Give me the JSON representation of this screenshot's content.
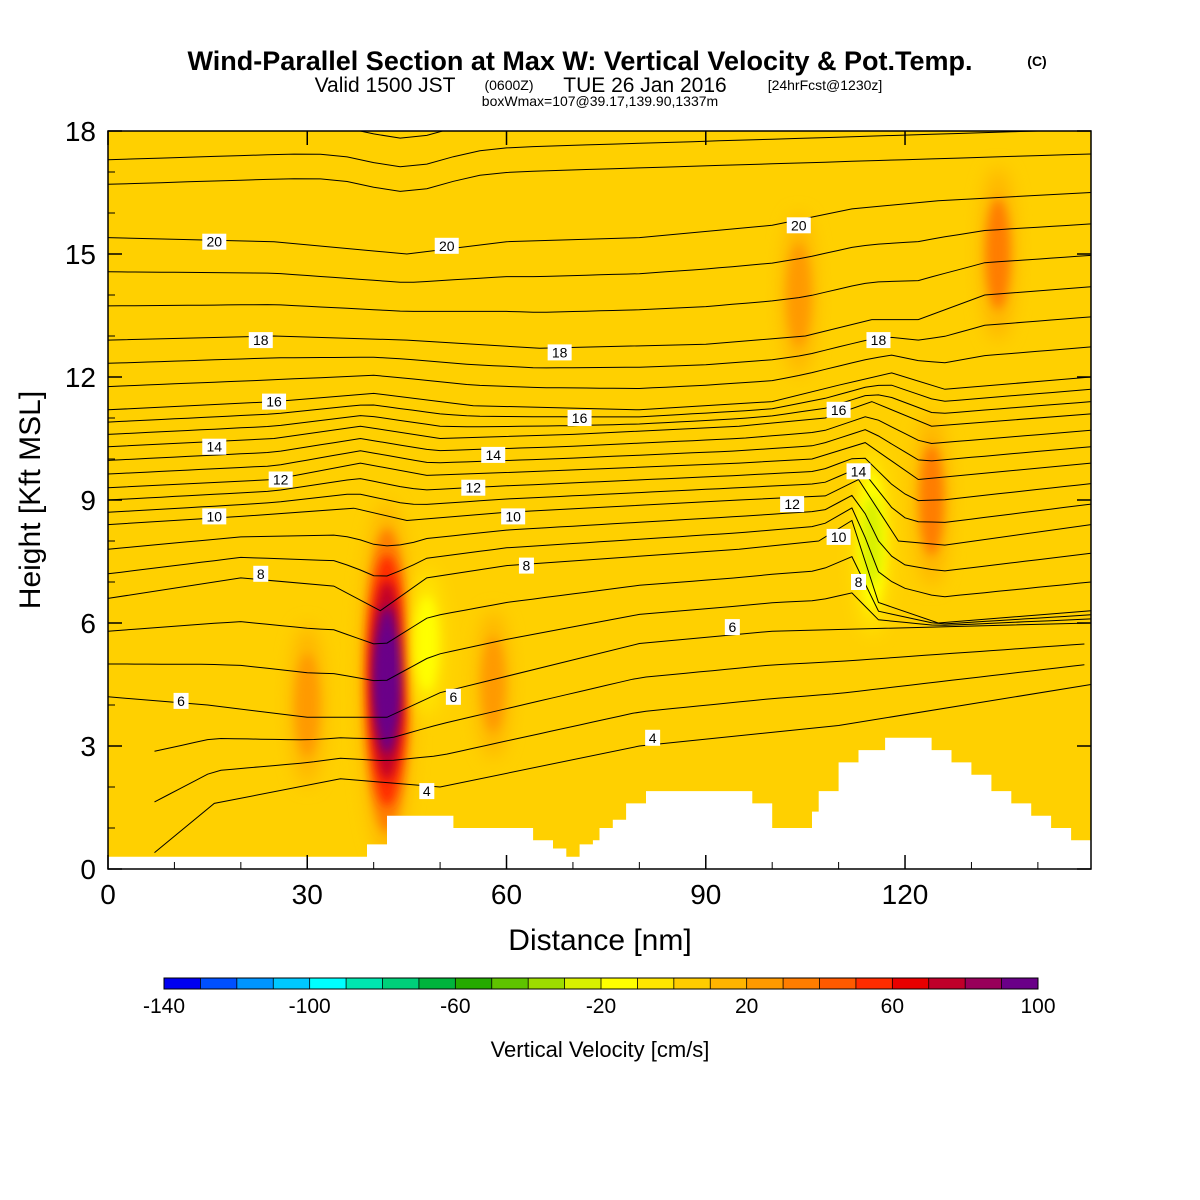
{
  "title": "Wind-Parallel Section at Max W: Vertical Velocity & Pot.Temp.",
  "copyright_mark": "(C)",
  "subtitle_main": "Valid 1500 JST",
  "subtitle_utc": "(0600Z)",
  "subtitle_date": "TUE 26 Jan 2016",
  "subtitle_fcst": "[24hrFcst@1230z]",
  "subtitle_box": "boxWmax=107@39.17,139.90,1337m",
  "chart_data": {
    "type": "heatmap",
    "xlabel": "Distance [nm]",
    "ylabel": "Height [Kft MSL]",
    "xlim": [
      0,
      148
    ],
    "ylim": [
      0,
      18
    ],
    "x_ticks": [
      0,
      30,
      60,
      90,
      120
    ],
    "y_ticks": [
      0,
      3,
      6,
      9,
      12,
      15,
      18
    ],
    "colorbar": {
      "label": "Vertical Velocity [cm/s]",
      "min": -140,
      "max": 100,
      "step": 10,
      "tick_values": [
        -140,
        -100,
        -60,
        -20,
        20,
        60,
        100
      ],
      "tick_labels": [
        "-140",
        "-100",
        "-60",
        "-20",
        "20",
        "60",
        "100"
      ],
      "colors": [
        "#0000f0",
        "#0050ff",
        "#0095ff",
        "#00c8ff",
        "#00ffff",
        "#00e6b0",
        "#00d07a",
        "#00b43c",
        "#25aa00",
        "#5fc400",
        "#9ddc00",
        "#d8f000",
        "#ffff00",
        "#ffe600",
        "#ffcc00",
        "#ffb400",
        "#ff9a00",
        "#ff7d00",
        "#ff5a00",
        "#ff2c00",
        "#e80000",
        "#c0002a",
        "#98005a",
        "#6a0088"
      ]
    },
    "vertical_velocity_features": [
      {
        "x": 42,
        "y": 4.6,
        "w_cms": 100,
        "note": "updraft core"
      },
      {
        "x": 115,
        "y": 8.0,
        "w_cms": -35,
        "note": "downdraft"
      },
      {
        "x": 48,
        "y": 5.5,
        "w_cms": -20
      },
      {
        "x": 124,
        "y": 9.0,
        "w_cms": 30
      },
      {
        "x": 134,
        "y": 15.0,
        "w_cms": 30
      },
      {
        "x": 104,
        "y": 14.0,
        "w_cms": 25
      },
      {
        "x": 30,
        "y": 4.0,
        "w_cms": 25
      },
      {
        "x": 58,
        "y": 4.5,
        "w_cms": 20
      }
    ],
    "theta_contours": {
      "units": "C",
      "levels": [
        {
          "value": 4,
          "points": [
            [
              7,
              0.4
            ],
            [
              16,
              1.6
            ],
            [
              35,
              2.2
            ],
            [
              50,
              2.0
            ],
            [
              80,
              3.0
            ],
            [
              110,
              3.5
            ],
            [
              148,
              4.5
            ]
          ]
        },
        {
          "value": 6,
          "points": [
            [
              0,
              4.2
            ],
            [
              15,
              4.0
            ],
            [
              30,
              3.7
            ],
            [
              42,
              3.7
            ],
            [
              50,
              4.3
            ],
            [
              80,
              5.5
            ],
            [
              100,
              5.8
            ],
            [
              148,
              6.0
            ]
          ]
        },
        {
          "value": 8,
          "points": [
            [
              0,
              6.6
            ],
            [
              20,
              7.1
            ],
            [
              34,
              6.9
            ],
            [
              41,
              6.3
            ],
            [
              48,
              7.1
            ],
            [
              60,
              7.4
            ],
            [
              95,
              7.8
            ],
            [
              107,
              8.0
            ],
            [
              112,
              8.5
            ],
            [
              116,
              6.5
            ],
            [
              125,
              6.0
            ],
            [
              148,
              6.3
            ]
          ]
        },
        {
          "value": 10,
          "points": [
            [
              0,
              8.4
            ],
            [
              20,
              8.6
            ],
            [
              37,
              8.8
            ],
            [
              45,
              8.5
            ],
            [
              60,
              8.7
            ],
            [
              95,
              9.0
            ],
            [
              108,
              9.1
            ],
            [
              113,
              9.5
            ],
            [
              119,
              8.0
            ],
            [
              126,
              7.9
            ],
            [
              148,
              8.4
            ]
          ]
        },
        {
          "value": 12,
          "points": [
            [
              0,
              9.3
            ],
            [
              25,
              9.5
            ],
            [
              38,
              9.9
            ],
            [
              48,
              9.6
            ],
            [
              65,
              9.7
            ],
            [
              95,
              9.9
            ],
            [
              106,
              10.0
            ],
            [
              114,
              10.4
            ],
            [
              122,
              9.5
            ],
            [
              148,
              9.9
            ]
          ]
        },
        {
          "value": 14,
          "points": [
            [
              0,
              10.3
            ],
            [
              25,
              10.5
            ],
            [
              38,
              10.8
            ],
            [
              50,
              10.5
            ],
            [
              70,
              10.6
            ],
            [
              95,
              10.8
            ],
            [
              108,
              11.0
            ],
            [
              115,
              11.4
            ],
            [
              124,
              10.8
            ],
            [
              148,
              11.1
            ]
          ]
        },
        {
          "value": 16,
          "points": [
            [
              0,
              11.2
            ],
            [
              25,
              11.4
            ],
            [
              40,
              11.6
            ],
            [
              55,
              11.3
            ],
            [
              80,
              11.2
            ],
            [
              100,
              11.4
            ],
            [
              110,
              11.8
            ],
            [
              118,
              12.1
            ],
            [
              126,
              11.7
            ],
            [
              148,
              12.0
            ]
          ]
        },
        {
          "value": 18,
          "points": [
            [
              0,
              12.9
            ],
            [
              25,
              13.0
            ],
            [
              45,
              12.9
            ],
            [
              65,
              12.7
            ],
            [
              90,
              12.8
            ],
            [
              105,
              13.0
            ],
            [
              115,
              13.4
            ],
            [
              122,
              13.4
            ],
            [
              132,
              14.0
            ],
            [
              148,
              14.2
            ]
          ]
        },
        {
          "value": 20,
          "points": [
            [
              0,
              15.4
            ],
            [
              25,
              15.3
            ],
            [
              45,
              15.0
            ],
            [
              60,
              15.3
            ],
            [
              80,
              15.4
            ],
            [
              100,
              15.7
            ],
            [
              112,
              16.1
            ],
            [
              125,
              16.3
            ],
            [
              148,
              16.5
            ]
          ]
        }
      ],
      "labels": [
        {
          "text": "20",
          "x": 16,
          "y": 15.3
        },
        {
          "text": "20",
          "x": 51,
          "y": 15.2
        },
        {
          "text": "20",
          "x": 104,
          "y": 15.7
        },
        {
          "text": "18",
          "x": 23,
          "y": 12.9
        },
        {
          "text": "18",
          "x": 68,
          "y": 12.6
        },
        {
          "text": "18",
          "x": 116,
          "y": 12.9
        },
        {
          "text": "16",
          "x": 25,
          "y": 11.4
        },
        {
          "text": "16",
          "x": 71,
          "y": 11.0
        },
        {
          "text": "16",
          "x": 110,
          "y": 11.2
        },
        {
          "text": "14",
          "x": 16,
          "y": 10.3
        },
        {
          "text": "14",
          "x": 58,
          "y": 10.1
        },
        {
          "text": "14",
          "x": 113,
          "y": 9.7
        },
        {
          "text": "12",
          "x": 26,
          "y": 9.5
        },
        {
          "text": "12",
          "x": 55,
          "y": 9.3
        },
        {
          "text": "12",
          "x": 103,
          "y": 8.9
        },
        {
          "text": "10",
          "x": 16,
          "y": 8.6
        },
        {
          "text": "10",
          "x": 61,
          "y": 8.6
        },
        {
          "text": "10",
          "x": 110,
          "y": 8.1
        },
        {
          "text": "8",
          "x": 23,
          "y": 7.2
        },
        {
          "text": "8",
          "x": 63,
          "y": 7.4
        },
        {
          "text": "8",
          "x": 113,
          "y": 7.0
        },
        {
          "text": "6",
          "x": 11,
          "y": 4.1
        },
        {
          "text": "6",
          "x": 52,
          "y": 4.2
        },
        {
          "text": "6",
          "x": 94,
          "y": 5.9
        },
        {
          "text": "4",
          "x": 48,
          "y": 1.9
        },
        {
          "text": "4",
          "x": 82,
          "y": 3.2
        }
      ]
    },
    "terrain": [
      [
        0,
        0.3
      ],
      [
        35,
        0.3
      ],
      [
        39,
        0.3
      ],
      [
        39,
        0.6
      ],
      [
        42,
        0.6
      ],
      [
        42,
        1.3
      ],
      [
        47,
        1.3
      ],
      [
        47,
        1.3
      ],
      [
        52,
        1.3
      ],
      [
        52,
        1.0
      ],
      [
        64,
        1.0
      ],
      [
        64,
        0.7
      ],
      [
        67,
        0.7
      ],
      [
        67,
        0.5
      ],
      [
        69,
        0.5
      ],
      [
        69,
        0.3
      ],
      [
        71,
        0.3
      ],
      [
        71,
        0.6
      ],
      [
        73,
        0.6
      ],
      [
        73,
        0.7
      ],
      [
        74,
        0.7
      ],
      [
        74,
        1.0
      ],
      [
        76,
        1.0
      ],
      [
        76,
        1.2
      ],
      [
        78,
        1.2
      ],
      [
        78,
        1.6
      ],
      [
        81,
        1.6
      ],
      [
        81,
        1.9
      ],
      [
        97,
        1.9
      ],
      [
        97,
        1.6
      ],
      [
        100,
        1.6
      ],
      [
        100,
        1.0
      ],
      [
        106,
        1.0
      ],
      [
        106,
        1.4
      ],
      [
        107,
        1.4
      ],
      [
        107,
        1.9
      ],
      [
        110,
        1.9
      ],
      [
        110,
        2.6
      ],
      [
        113,
        2.6
      ],
      [
        113,
        2.9
      ],
      [
        117,
        2.9
      ],
      [
        117,
        3.2
      ],
      [
        124,
        3.2
      ],
      [
        124,
        2.9
      ],
      [
        127,
        2.9
      ],
      [
        127,
        2.6
      ],
      [
        130,
        2.6
      ],
      [
        130,
        2.3
      ],
      [
        133,
        2.3
      ],
      [
        133,
        1.9
      ],
      [
        136,
        1.9
      ],
      [
        136,
        1.6
      ],
      [
        139,
        1.6
      ],
      [
        139,
        1.3
      ],
      [
        142,
        1.3
      ],
      [
        142,
        1.0
      ],
      [
        145,
        1.0
      ],
      [
        145,
        0.7
      ],
      [
        148,
        0.7
      ]
    ]
  }
}
